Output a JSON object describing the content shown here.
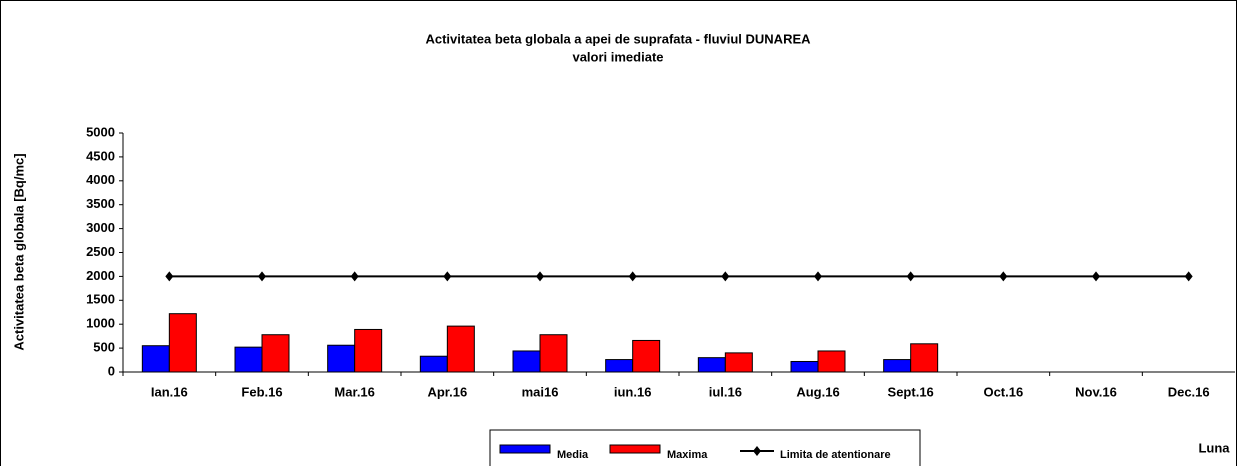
{
  "chart_data": {
    "type": "bar",
    "title": "Activitatea beta globala a apei de suprafata - fluviul DUNAREA",
    "subtitle": "valori imediate",
    "y_label": "Activitatea beta globala [Bq/mc]",
    "x_label": "Luna",
    "categories": [
      "Ian.16",
      "Feb.16",
      "Mar.16",
      "Apr.16",
      "mai16",
      "iun.16",
      "iul.16",
      "Aug.16",
      "Sept.16",
      "Oct.16",
      "Nov.16",
      "Dec.16"
    ],
    "series": [
      {
        "name": "Media",
        "color": "#0000ff",
        "type": "bar",
        "values": [
          550,
          520,
          560,
          330,
          440,
          260,
          300,
          220,
          260,
          null,
          null,
          null
        ]
      },
      {
        "name": "Maxima",
        "color": "#ff0000",
        "type": "bar",
        "values": [
          1220,
          780,
          890,
          960,
          780,
          660,
          400,
          440,
          590,
          null,
          null,
          null
        ]
      },
      {
        "name": "Limita de atentionare",
        "color": "#000000",
        "type": "line",
        "values": [
          2000,
          2000,
          2000,
          2000,
          2000,
          2000,
          2000,
          2000,
          2000,
          2000,
          2000,
          2000
        ]
      }
    ],
    "ylim": [
      0,
      5000
    ],
    "yticks": [
      0,
      500,
      1000,
      1500,
      2000,
      2500,
      3000,
      3500,
      4000,
      4500,
      5000
    ],
    "legend": "bottom"
  }
}
